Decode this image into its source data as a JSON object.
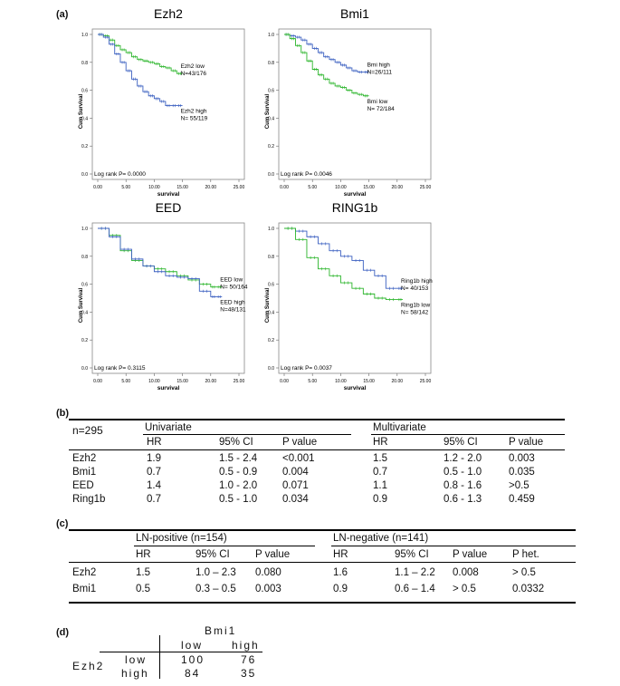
{
  "panel_a": {
    "label": "(a)"
  },
  "chart_data": [
    {
      "type": "line",
      "title": "Ezh2",
      "xlabel": "survival",
      "ylabel": "Cum Survival",
      "xlim": [
        0,
        25
      ],
      "ylim": [
        0,
        1
      ],
      "xticks": [
        "0.00",
        "5.00",
        "10.00",
        "15.00",
        "20.00",
        "25.00"
      ],
      "yticks": [
        "0.0",
        "0.2",
        "0.4",
        "0.6",
        "0.8",
        "1.0"
      ],
      "annotation": "Log rank P= 0.0000",
      "series": [
        {
          "name": "Ezh2 low",
          "n_text": "N=43/176",
          "color": "#2bb52b",
          "x": [
            0,
            1,
            2,
            3,
            4,
            5,
            6,
            7,
            8,
            9,
            10,
            11,
            12,
            13,
            14,
            15
          ],
          "y": [
            1.0,
            0.99,
            0.96,
            0.92,
            0.89,
            0.87,
            0.84,
            0.82,
            0.81,
            0.8,
            0.79,
            0.77,
            0.76,
            0.74,
            0.72,
            0.72
          ]
        },
        {
          "name": "Ezh2 high",
          "n_text": "N= 55/119",
          "color": "#3a5fc0",
          "x": [
            0,
            1,
            2,
            3,
            4,
            5,
            6,
            7,
            8,
            9,
            10,
            11,
            12,
            13,
            14,
            15
          ],
          "y": [
            1.0,
            0.98,
            0.93,
            0.86,
            0.8,
            0.74,
            0.68,
            0.63,
            0.59,
            0.56,
            0.54,
            0.52,
            0.49,
            0.49,
            0.49,
            0.49
          ]
        }
      ]
    },
    {
      "type": "line",
      "title": "Bmi1",
      "xlabel": "survival",
      "ylabel": "Cum Survival",
      "xlim": [
        0,
        25
      ],
      "ylim": [
        0,
        1
      ],
      "xticks": [
        "0.00",
        "5.00",
        "10.00",
        "15.00",
        "20.00",
        "25.00"
      ],
      "yticks": [
        "0.0",
        "0.2",
        "0.4",
        "0.6",
        "0.8",
        "1.0"
      ],
      "annotation": "Log rank P= 0.0046",
      "series": [
        {
          "name": "Bmi high",
          "n_text": "N=26/111",
          "color": "#3a5fc0",
          "x": [
            0,
            1,
            2,
            3,
            4,
            5,
            6,
            7,
            8,
            9,
            10,
            11,
            12,
            13,
            14,
            15
          ],
          "y": [
            1.0,
            0.99,
            0.98,
            0.96,
            0.93,
            0.9,
            0.87,
            0.84,
            0.82,
            0.8,
            0.78,
            0.76,
            0.74,
            0.73,
            0.73,
            0.73
          ]
        },
        {
          "name": "Bmi low",
          "n_text": "N= 72/184",
          "color": "#2bb52b",
          "x": [
            0,
            1,
            2,
            3,
            4,
            5,
            6,
            7,
            8,
            9,
            10,
            11,
            12,
            13,
            14,
            15
          ],
          "y": [
            1.0,
            0.97,
            0.92,
            0.87,
            0.81,
            0.75,
            0.71,
            0.68,
            0.65,
            0.63,
            0.62,
            0.6,
            0.58,
            0.57,
            0.56,
            0.56
          ]
        }
      ]
    },
    {
      "type": "line",
      "title": "EED",
      "xlabel": "survival",
      "ylabel": "Cum Survival",
      "xlim": [
        0,
        25
      ],
      "ylim": [
        0,
        1
      ],
      "xticks": [
        "0.00",
        "5.00",
        "10.00",
        "15.00",
        "20.00",
        "25.00"
      ],
      "yticks": [
        "0.0",
        "0.2",
        "0.4",
        "0.6",
        "0.8",
        "1.0"
      ],
      "annotation": "Log rank P= 0.3115",
      "series": [
        {
          "name": "EED low",
          "n_text": "N= 50/164",
          "color": "#2bb52b",
          "x": [
            0,
            2,
            4,
            6,
            8,
            10,
            12,
            14,
            16,
            18,
            20,
            21,
            22
          ],
          "y": [
            1.0,
            0.95,
            0.84,
            0.77,
            0.73,
            0.71,
            0.69,
            0.66,
            0.63,
            0.6,
            0.58,
            0.58,
            0.58
          ]
        },
        {
          "name": "EED high",
          "n_text": "N=48/131",
          "color": "#3a5fc0",
          "x": [
            0,
            2,
            4,
            6,
            8,
            10,
            12,
            14,
            16,
            18,
            20,
            21,
            22
          ],
          "y": [
            1.0,
            0.94,
            0.85,
            0.78,
            0.73,
            0.69,
            0.66,
            0.65,
            0.64,
            0.55,
            0.51,
            0.51,
            0.51
          ]
        }
      ]
    },
    {
      "type": "line",
      "title": "RING1b",
      "xlabel": "survival",
      "ylabel": "Cum Survival",
      "xlim": [
        0,
        25
      ],
      "ylim": [
        0,
        1
      ],
      "xticks": [
        "0.00",
        "5.00",
        "10.00",
        "15.00",
        "20.00",
        "25.00"
      ],
      "yticks": [
        "0.0",
        "0.2",
        "0.4",
        "0.6",
        "0.8",
        "1.0"
      ],
      "annotation": "Log rank P= 0.0037",
      "series": [
        {
          "name": "Ring1b high",
          "n_text": "N= 40/153",
          "color": "#3a5fc0",
          "x": [
            0,
            2,
            4,
            6,
            8,
            10,
            12,
            14,
            16,
            18,
            20,
            21
          ],
          "y": [
            1.0,
            0.98,
            0.94,
            0.89,
            0.84,
            0.8,
            0.77,
            0.7,
            0.66,
            0.57,
            0.57,
            0.57
          ]
        },
        {
          "name": "Ring1b low",
          "n_text": "N= 58/142",
          "color": "#2bb52b",
          "x": [
            0,
            2,
            4,
            6,
            8,
            10,
            12,
            14,
            16,
            18,
            20,
            21
          ],
          "y": [
            1.0,
            0.92,
            0.79,
            0.71,
            0.66,
            0.61,
            0.57,
            0.53,
            0.5,
            0.49,
            0.49,
            0.49
          ]
        }
      ]
    }
  ],
  "panel_b": {
    "label": "(b)",
    "n_label": "n=295",
    "group1": "Univariate",
    "group2": "Multivariate",
    "headers": [
      "HR",
      "95% CI",
      "P value",
      "HR",
      "95% CI",
      "P value"
    ],
    "rows": [
      {
        "name": "Ezh2",
        "vals": [
          "1.9",
          "1.5 - 2.4",
          "<0.001",
          "1.5",
          "1.2 - 2.0",
          "0.003"
        ]
      },
      {
        "name": "Bmi1",
        "vals": [
          "0.7",
          "0.5 - 0.9",
          "0.004",
          "0.7",
          "0.5 - 1.0",
          "0.035"
        ]
      },
      {
        "name": "EED",
        "vals": [
          "1.4",
          "1.0 - 2.0",
          "0.071",
          "1.1",
          "0.8 - 1.6",
          ">0.5"
        ]
      },
      {
        "name": "Ring1b",
        "vals": [
          "0.7",
          "0.5 - 1.0",
          "0.034",
          "0.9",
          "0.6 - 1.3",
          "0.459"
        ]
      }
    ]
  },
  "panel_c": {
    "label": "(c)",
    "group1": "LN-positive (n=154)",
    "group2": "LN-negative (n=141)",
    "headers": [
      "HR",
      "95% CI",
      "P value",
      "HR",
      "95% CI",
      "P value",
      "P het."
    ],
    "rows": [
      {
        "name": "Ezh2",
        "vals": [
          "1.5",
          "1.0 – 2.3",
          "0.080",
          "1.6",
          "1.1 – 2.2",
          "0.008",
          "> 0.5"
        ]
      },
      {
        "name": "Bmi1",
        "vals": [
          "0.5",
          "0.3 – 0.5",
          "0.003",
          "0.9",
          "0.6 – 1.4",
          "> 0.5",
          "0.0332"
        ]
      }
    ]
  },
  "panel_d": {
    "label": "(d)",
    "col_title": "Bmi1",
    "row_title": "Ezh2",
    "col_headers": [
      "low",
      "high"
    ],
    "rows": [
      {
        "name": "low",
        "vals": [
          "100",
          "76"
        ]
      },
      {
        "name": "high",
        "vals": [
          "84",
          "35"
        ]
      }
    ]
  }
}
